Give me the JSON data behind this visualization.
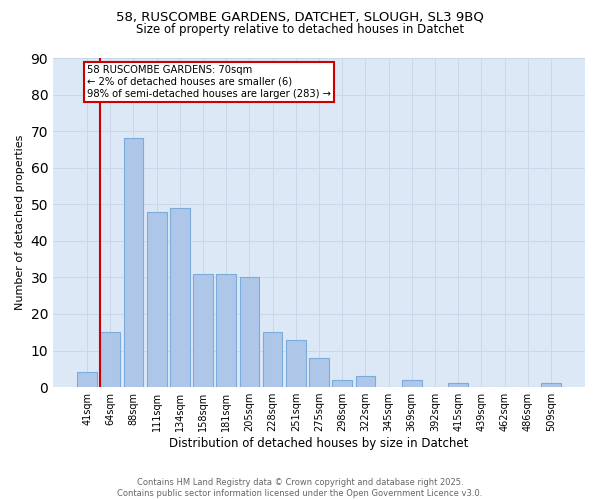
{
  "title_line1": "58, RUSCOMBE GARDENS, DATCHET, SLOUGH, SL3 9BQ",
  "title_line2": "Size of property relative to detached houses in Datchet",
  "xlabel": "Distribution of detached houses by size in Datchet",
  "ylabel": "Number of detached properties",
  "bar_labels": [
    "41sqm",
    "64sqm",
    "88sqm",
    "111sqm",
    "134sqm",
    "158sqm",
    "181sqm",
    "205sqm",
    "228sqm",
    "251sqm",
    "275sqm",
    "298sqm",
    "322sqm",
    "345sqm",
    "369sqm",
    "392sqm",
    "415sqm",
    "439sqm",
    "462sqm",
    "486sqm",
    "509sqm"
  ],
  "bar_heights": [
    4,
    15,
    68,
    48,
    49,
    31,
    31,
    30,
    15,
    13,
    8,
    2,
    3,
    0,
    2,
    0,
    1,
    0,
    0,
    0,
    1
  ],
  "bar_color": "#aec6e8",
  "bar_edge_color": "#7aabda",
  "reference_line_color": "#cc0000",
  "annotation_text": "58 RUSCOMBE GARDENS: 70sqm\n← 2% of detached houses are smaller (6)\n98% of semi-detached houses are larger (283) →",
  "annotation_box_color": "#ffffff",
  "annotation_box_edge_color": "#cc0000",
  "ylim": [
    0,
    90
  ],
  "yticks": [
    0,
    10,
    20,
    30,
    40,
    50,
    60,
    70,
    80,
    90
  ],
  "grid_color": "#c8d8e8",
  "plot_bg_color": "#dce8f5",
  "fig_bg_color": "#ffffff",
  "footer_text": "Contains HM Land Registry data © Crown copyright and database right 2025.\nContains public sector information licensed under the Open Government Licence v3.0."
}
